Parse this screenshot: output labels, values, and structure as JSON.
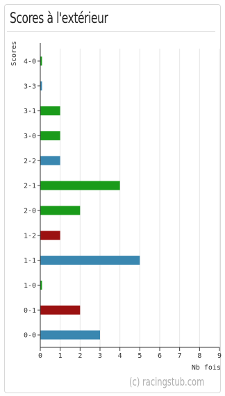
{
  "title": "Scores à l'extérieur",
  "credit": "(c) racingstub.com",
  "chart_data": {
    "type": "bar",
    "orientation": "horizontal",
    "ylabel": "Scores",
    "xlabel": "Nb fois",
    "xlim": [
      0,
      9
    ],
    "x_ticks": [
      0,
      1,
      2,
      3,
      4,
      5,
      6,
      7,
      8,
      9
    ],
    "categories": [
      "4-0",
      "3-3",
      "3-1",
      "3-0",
      "2-2",
      "2-1",
      "2-0",
      "1-2",
      "1-1",
      "1-0",
      "0-1",
      "0-0"
    ],
    "values": [
      0,
      0,
      1,
      1,
      1,
      4,
      2,
      1,
      5,
      0,
      2,
      3
    ],
    "bar_colors": [
      "#1a9b1a",
      "#3a87b0",
      "#1a9b1a",
      "#1a9b1a",
      "#3a87b0",
      "#1a9b1a",
      "#1a9b1a",
      "#9b1111",
      "#3a87b0",
      "#1a9b1a",
      "#9b1111",
      "#3a87b0"
    ]
  }
}
